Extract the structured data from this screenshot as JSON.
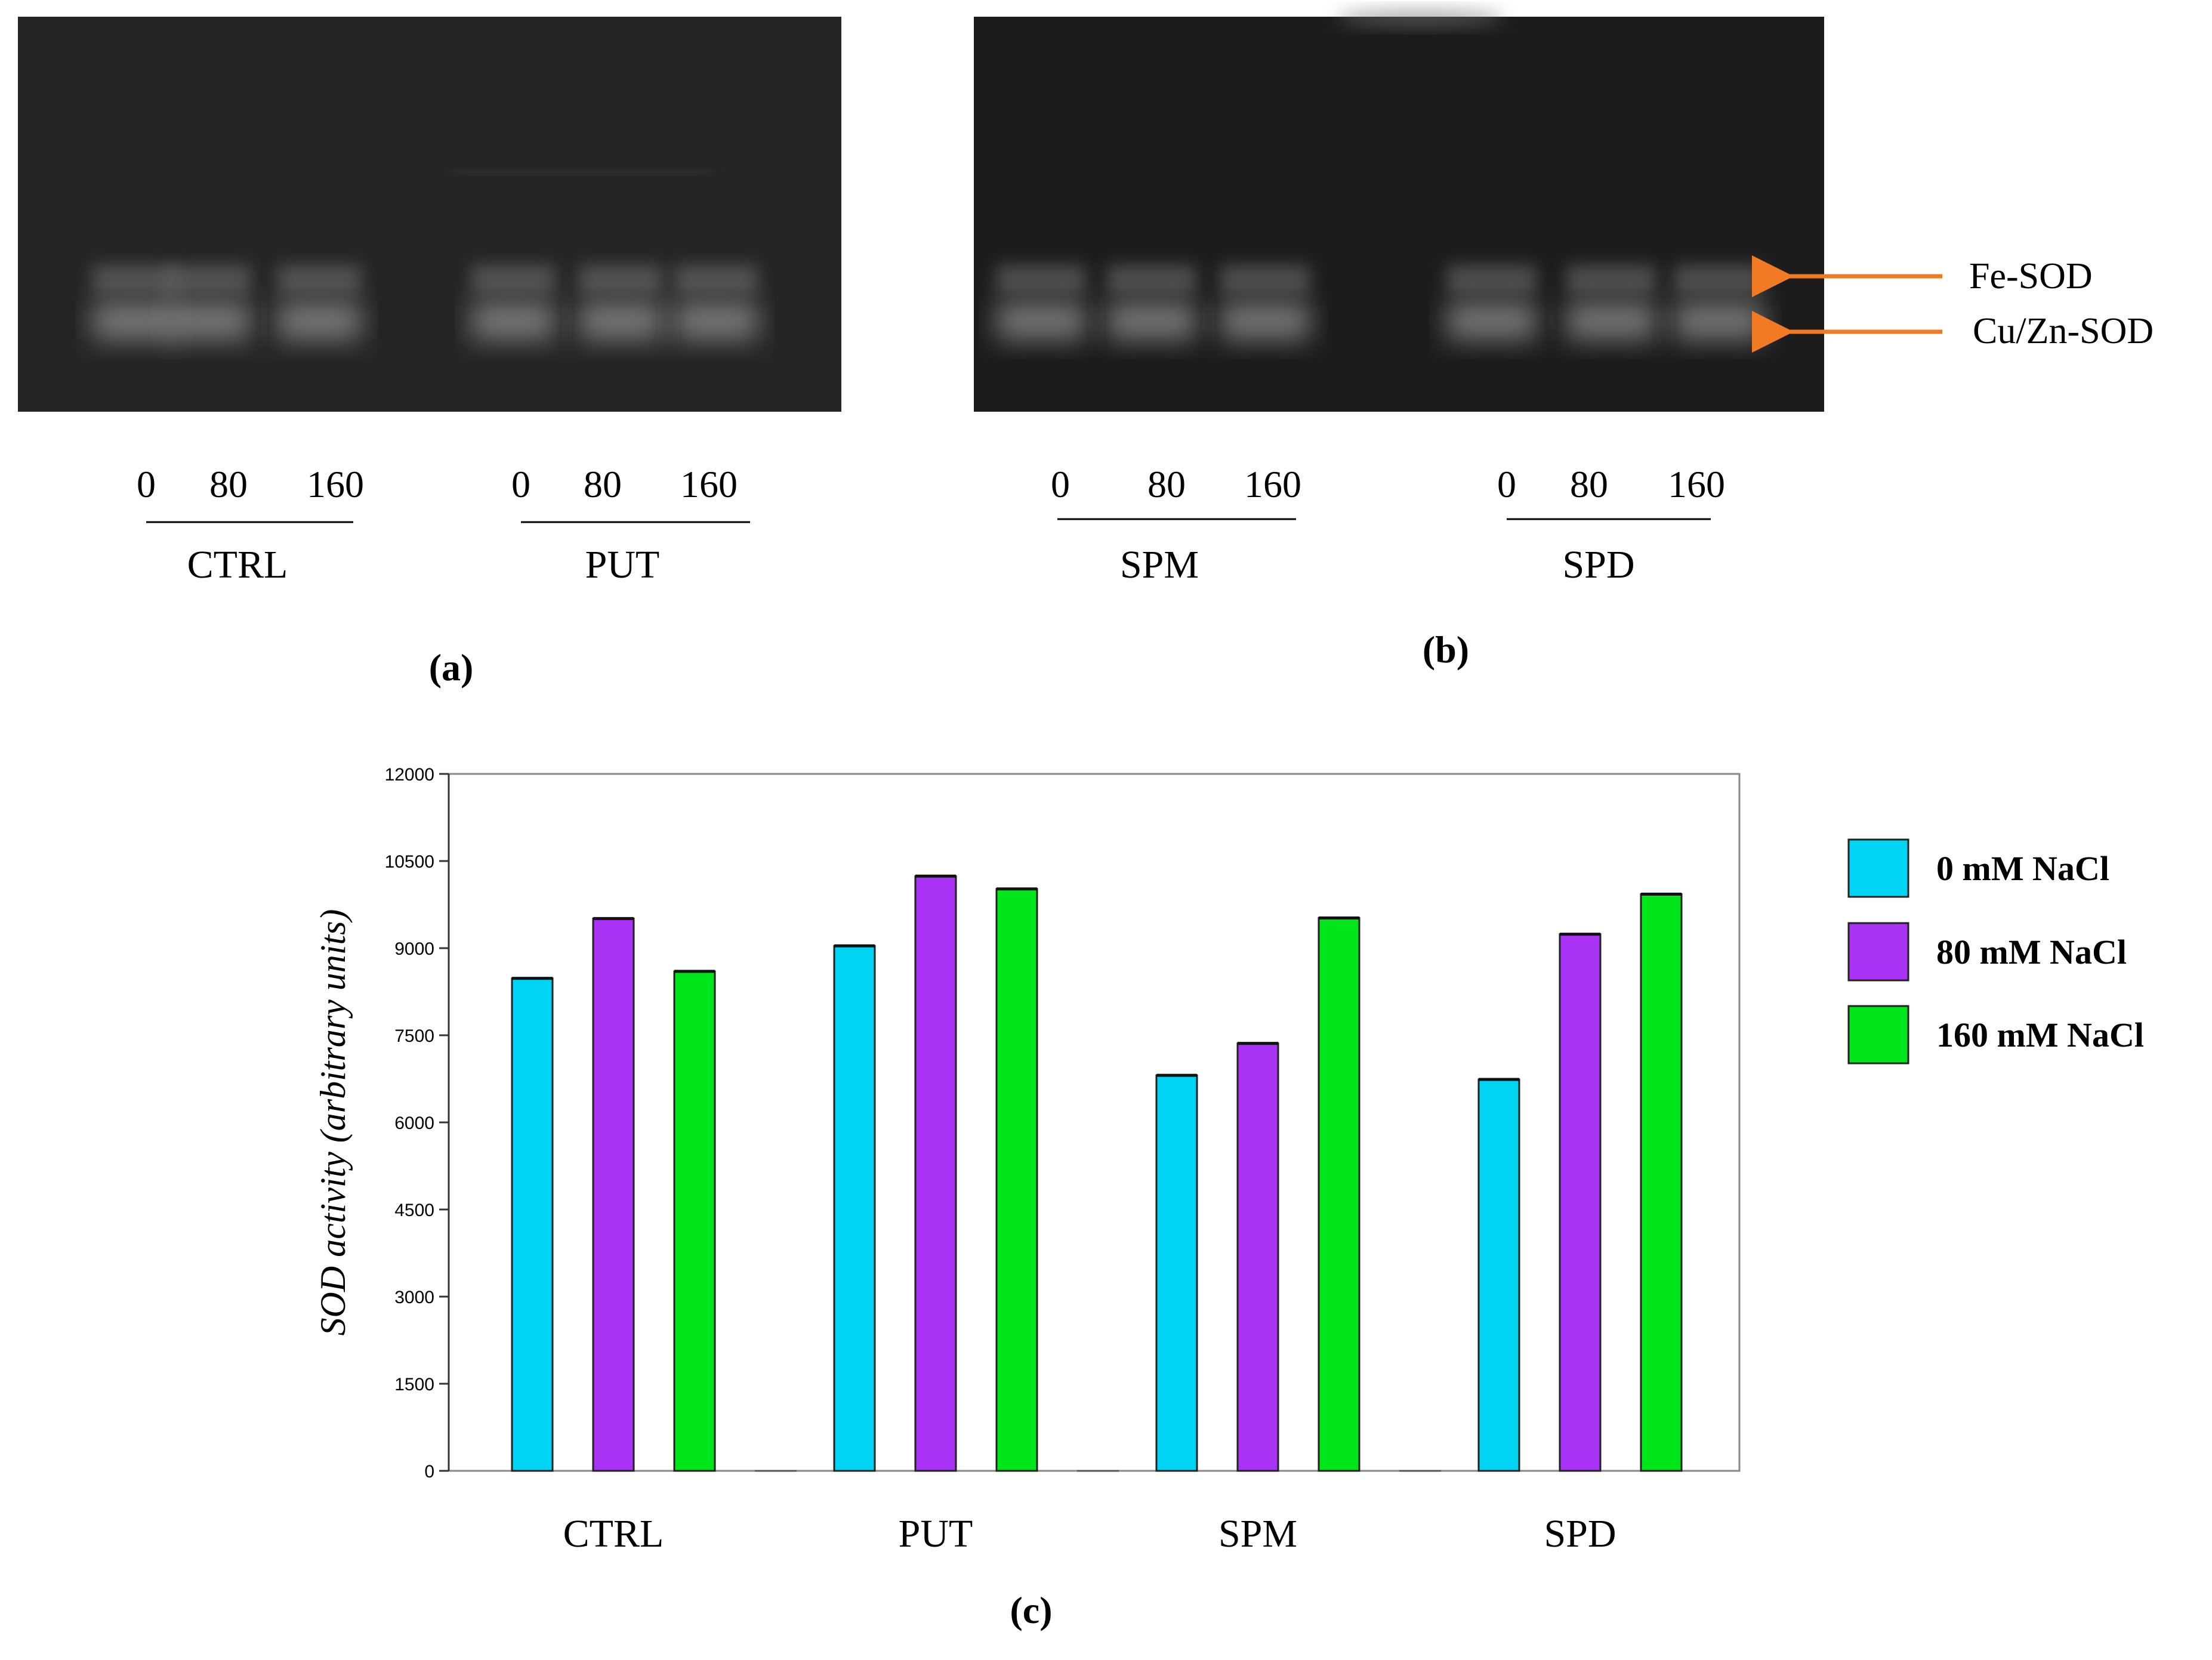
{
  "colors": {
    "series": [
      "#00d4f5",
      "#a833f5",
      "#00e61a"
    ],
    "arrow": "#f07b24",
    "gel_background": "#202020",
    "band": "#8a8a8a"
  },
  "gel_a": {
    "panel_label": "(a)",
    "groups": [
      {
        "name": "CTRL",
        "lanes": [
          "0",
          "80",
          "160"
        ]
      },
      {
        "name": "PUT",
        "lanes": [
          "0",
          "80",
          "160"
        ]
      }
    ]
  },
  "gel_b": {
    "panel_label": "(b)",
    "groups": [
      {
        "name": "SPM",
        "lanes": [
          "0",
          "80",
          "160"
        ]
      },
      {
        "name": "SPD",
        "lanes": [
          "0",
          "80",
          "160"
        ]
      }
    ]
  },
  "band_labels": {
    "fe": "Fe-SOD",
    "cuzn": "Cu/Zn-SOD"
  },
  "chart_panel_label": "(c)",
  "chart_data": {
    "type": "bar",
    "categories": [
      "CTRL",
      "PUT",
      "SPM",
      "SPD"
    ],
    "series": [
      {
        "name": "0 mM NaCl",
        "values": [
          8480,
          9040,
          6810,
          6740
        ]
      },
      {
        "name": "80 mM NaCl",
        "values": [
          9510,
          10240,
          7360,
          9240
        ]
      },
      {
        "name": "160 mM NaCl",
        "values": [
          8600,
          10020,
          9520,
          9930
        ]
      }
    ],
    "ylabel": "SOD activity (arbitrary units)",
    "ylim": [
      0,
      12000
    ],
    "yticks": [
      0,
      1500,
      3000,
      4500,
      6000,
      7500,
      9000,
      10500,
      12000
    ],
    "grid": false,
    "legend": "right"
  }
}
